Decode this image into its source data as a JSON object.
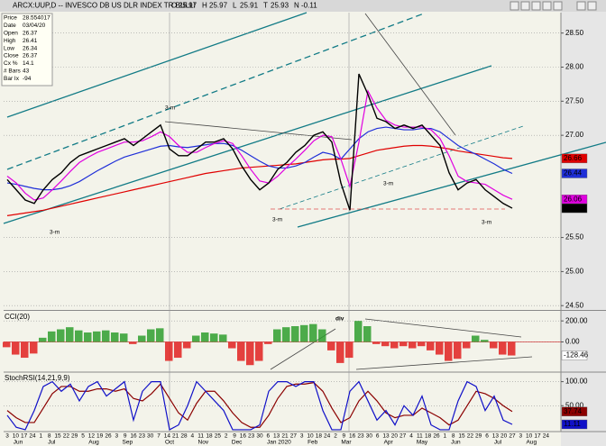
{
  "window": {
    "title": "ARCX:UUP,D -- INVESCO DB US DLR INDEX TR BULLI"
  },
  "quote": [
    {
      "label": "O",
      "value": 25.97
    },
    {
      "label": "H",
      "value": 25.97
    },
    {
      "label": "L",
      "value": 25.91
    },
    {
      "label": "T",
      "value": 25.93
    },
    {
      "label": "N",
      "value": -0.11
    }
  ],
  "info": [
    [
      "Price",
      "28.554017"
    ],
    [
      "Date",
      "03/04/20"
    ],
    [
      "Open",
      "26.37"
    ],
    [
      "High",
      "26.41"
    ],
    [
      "Low",
      "26.34"
    ],
    [
      "Close",
      "26.37"
    ],
    [
      "Cx %",
      "14.1"
    ],
    [
      "# Bars",
      "43"
    ],
    [
      "Bar Ix",
      "-94"
    ]
  ],
  "chart_data": [
    {
      "type": "line",
      "ylim": [
        24.45,
        28.8
      ],
      "yticks": [
        {
          "value": 28.5,
          "label": "28.50"
        },
        {
          "value": 28,
          "label": "28.00"
        },
        {
          "value": 27.5,
          "label": "27.50"
        },
        {
          "value": 27,
          "label": "27.00"
        },
        {
          "value": 25.5,
          "label": "25.50"
        },
        {
          "value": 25,
          "label": "25.00"
        },
        {
          "value": 24.5,
          "label": "24.50"
        }
      ],
      "grid": true,
      "series": [
        {
          "color": "#e00000",
          "values": [
            25.82,
            25.84,
            25.86,
            25.88,
            25.9,
            25.93,
            25.96,
            25.99,
            26.02,
            26.05,
            26.08,
            26.11,
            26.14,
            26.17,
            26.2,
            26.23,
            26.26,
            26.29,
            26.32,
            26.35,
            26.38,
            26.41,
            26.44,
            26.46,
            26.48,
            26.5,
            26.52,
            26.53,
            26.54,
            26.55,
            26.56,
            26.57,
            26.58,
            26.6,
            26.62,
            26.64,
            26.65,
            26.65,
            26.66,
            26.7,
            26.74,
            26.78,
            26.8,
            26.82,
            26.84,
            26.85,
            26.85,
            26.84,
            26.82,
            26.8,
            26.77,
            26.75,
            26.73,
            26.71,
            26.69,
            26.67,
            26.66
          ]
        },
        {
          "color": "#1f2fd8",
          "values": [
            26.3,
            26.28,
            26.25,
            26.22,
            26.2,
            26.2,
            26.22,
            26.26,
            26.32,
            26.4,
            26.48,
            26.55,
            26.62,
            26.68,
            26.72,
            26.76,
            26.8,
            26.84,
            26.85,
            26.83,
            26.82,
            26.84,
            26.86,
            26.88,
            26.88,
            26.85,
            26.78,
            26.7,
            26.62,
            26.55,
            26.52,
            26.52,
            26.55,
            26.6,
            26.68,
            26.75,
            26.72,
            26.65,
            26.8,
            26.95,
            27.05,
            27.1,
            27.12,
            27.1,
            27.08,
            27.08,
            27.1,
            27.1,
            27.05,
            26.95,
            26.85,
            26.78,
            26.72,
            26.65,
            26.58,
            26.5,
            26.44
          ]
        },
        {
          "color": "#e000e0",
          "values": [
            26.4,
            26.3,
            26.15,
            26.05,
            26.08,
            26.2,
            26.33,
            26.47,
            26.6,
            26.68,
            26.75,
            26.8,
            26.85,
            26.9,
            26.9,
            26.92,
            26.98,
            27.05,
            26.98,
            26.85,
            26.75,
            26.75,
            26.82,
            26.88,
            26.92,
            26.88,
            26.7,
            26.5,
            26.33,
            26.3,
            26.4,
            26.53,
            26.65,
            26.78,
            26.92,
            27.0,
            26.98,
            26.65,
            26.25,
            26.9,
            27.65,
            27.4,
            27.22,
            27.15,
            27.12,
            27.12,
            27.12,
            27.08,
            26.95,
            26.7,
            26.4,
            26.32,
            26.3,
            26.28,
            26.2,
            26.12,
            26.06
          ]
        },
        {
          "color": "#000000",
          "values": [
            26.35,
            26.2,
            26.05,
            26.0,
            26.2,
            26.35,
            26.45,
            26.6,
            26.7,
            26.75,
            26.8,
            26.85,
            26.9,
            26.95,
            26.85,
            26.95,
            27.05,
            27.15,
            26.8,
            26.7,
            26.7,
            26.8,
            26.9,
            26.9,
            26.95,
            26.8,
            26.55,
            26.35,
            26.2,
            26.3,
            26.5,
            26.6,
            26.75,
            26.85,
            27.0,
            27.05,
            26.9,
            26.3,
            25.9,
            27.9,
            27.6,
            27.25,
            27.2,
            27.1,
            27.15,
            27.1,
            27.15,
            27.0,
            26.85,
            26.45,
            26.2,
            26.3,
            26.35,
            26.2,
            26.1,
            26.0,
            25.93
          ]
        }
      ],
      "annotations": [
        "3-m",
        "3-m",
        "3-m",
        "3-m",
        "3-m"
      ]
    },
    {
      "type": "bar",
      "title": "CCI(20)",
      "ylim": [
        -278,
        287
      ],
      "yticks": [
        {
          "value": 200,
          "label": "200.00"
        },
        {
          "value": 0,
          "label": "0.00"
        }
      ],
      "grid": true,
      "positive_color": "#2e9e2e",
      "negative_color": "#e02020",
      "values": [
        -50,
        -120,
        -150,
        -110,
        40,
        100,
        120,
        140,
        110,
        90,
        100,
        110,
        90,
        80,
        -20,
        60,
        120,
        130,
        -180,
        -150,
        -60,
        60,
        90,
        80,
        70,
        -60,
        -180,
        -220,
        -180,
        -20,
        120,
        140,
        150,
        160,
        170,
        120,
        -80,
        -200,
        -150,
        200,
        150,
        -20,
        -40,
        -60,
        -40,
        -60,
        -40,
        -80,
        -120,
        -180,
        -160,
        -60,
        60,
        20,
        -60,
        -120,
        -128.46
      ],
      "annotations": [
        "div"
      ]
    },
    {
      "type": "line",
      "title": "StochRSI(14,21,9,9)",
      "ylim": [
        -2,
        118
      ],
      "yticks": [
        {
          "value": 100,
          "label": "100.00"
        },
        {
          "value": 50,
          "label": "50.00"
        }
      ],
      "grid": true,
      "series": [
        {
          "color": "#8b0000",
          "values": [
            40,
            25,
            15,
            15,
            45,
            75,
            90,
            90,
            80,
            80,
            85,
            85,
            80,
            85,
            65,
            60,
            75,
            95,
            65,
            35,
            20,
            55,
            80,
            80,
            60,
            35,
            15,
            5,
            5,
            30,
            65,
            90,
            95,
            95,
            98,
            80,
            45,
            15,
            25,
            60,
            80,
            60,
            35,
            25,
            30,
            30,
            45,
            35,
            25,
            10,
            20,
            50,
            80,
            75,
            65,
            50,
            37.74
          ]
        },
        {
          "color": "#1010c8",
          "values": [
            30,
            5,
            0,
            40,
            90,
            100,
            80,
            95,
            60,
            90,
            100,
            70,
            85,
            100,
            20,
            80,
            100,
            100,
            0,
            10,
            50,
            100,
            80,
            60,
            40,
            0,
            0,
            0,
            10,
            80,
            100,
            100,
            90,
            100,
            100,
            40,
            0,
            0,
            80,
            100,
            60,
            20,
            40,
            10,
            50,
            30,
            70,
            10,
            0,
            0,
            60,
            100,
            90,
            40,
            70,
            20,
            11.11
          ]
        }
      ]
    }
  ],
  "x_axis": {
    "days": [
      "3",
      "10",
      "17",
      "24",
      "1",
      "8",
      "15",
      "22",
      "29",
      "5",
      "12",
      "19",
      "26",
      "3",
      "9",
      "16",
      "23",
      "30",
      "7",
      "14",
      "21",
      "28",
      "4",
      "11",
      "18",
      "25",
      "2",
      "9",
      "16",
      "23",
      "30",
      "6",
      "13",
      "21",
      "27",
      "3",
      "10",
      "18",
      "24",
      "2",
      "9",
      "16",
      "23",
      "30",
      "6",
      "13",
      "20",
      "27",
      "4",
      "11",
      "18",
      "26",
      "1",
      "8",
      "15",
      "22",
      "29",
      "6",
      "13",
      "20",
      "27",
      "3",
      "10",
      "17",
      "24"
    ],
    "months": [
      "Jun",
      "Jul",
      "Aug",
      "Sep",
      "Oct",
      "Nov",
      "Dec",
      "Jan 2020",
      "Feb",
      "Mar",
      "Apr",
      "May",
      "Jun",
      "Jul",
      "Aug"
    ]
  }
}
